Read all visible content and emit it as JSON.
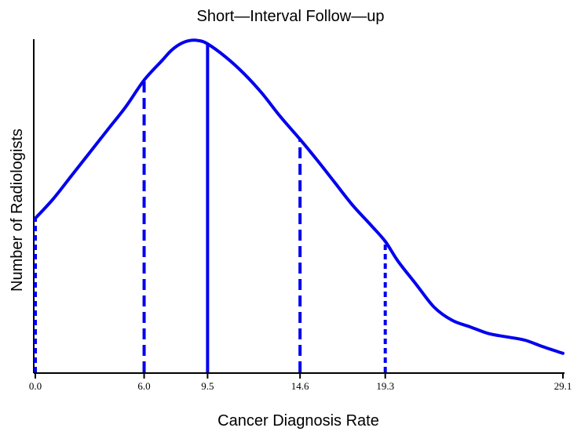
{
  "chart_data": {
    "type": "line",
    "title": "Short—Interval Follow—up",
    "xlabel": "Cancer Diagnosis Rate",
    "ylabel": "Number of Radiologists",
    "xlim": [
      0.0,
      29.1
    ],
    "ylim": [
      0,
      1.0
    ],
    "grid": false,
    "color": "#0000ee",
    "curve": {
      "x": [
        0.0,
        1.0,
        2.0,
        3.0,
        4.0,
        5.0,
        6.0,
        7.0,
        7.5,
        8.0,
        8.5,
        9.0,
        9.5,
        10.5,
        11.5,
        12.5,
        13.5,
        14.6,
        15.5,
        16.5,
        17.5,
        18.5,
        19.3,
        20.0,
        21.0,
        22.0,
        23.0,
        24.0,
        25.0,
        26.0,
        27.0,
        28.0,
        29.1
      ],
      "y": [
        0.47,
        0.53,
        0.6,
        0.67,
        0.74,
        0.81,
        0.89,
        0.95,
        0.98,
        1.0,
        1.01,
        1.01,
        1.0,
        0.96,
        0.91,
        0.85,
        0.78,
        0.71,
        0.65,
        0.58,
        0.51,
        0.45,
        0.4,
        0.34,
        0.27,
        0.2,
        0.16,
        0.14,
        0.12,
        0.11,
        0.1,
        0.08,
        0.06
      ]
    },
    "reference_lines": [
      {
        "x": 0.0,
        "tick_label": "0.0",
        "style": "dotted",
        "height": 0.47
      },
      {
        "x": 6.0,
        "tick_label": "6.0",
        "style": "dashed",
        "height": 0.89
      },
      {
        "x": 9.5,
        "tick_label": "9.5",
        "style": "solid",
        "height": 1.0
      },
      {
        "x": 14.6,
        "tick_label": "14.6",
        "style": "dashed",
        "height": 0.71
      },
      {
        "x": 19.3,
        "tick_label": "19.3",
        "style": "dotted",
        "height": 0.4
      }
    ],
    "extra_ticks": [
      {
        "x": 29.1,
        "tick_label": "29.1"
      }
    ]
  }
}
